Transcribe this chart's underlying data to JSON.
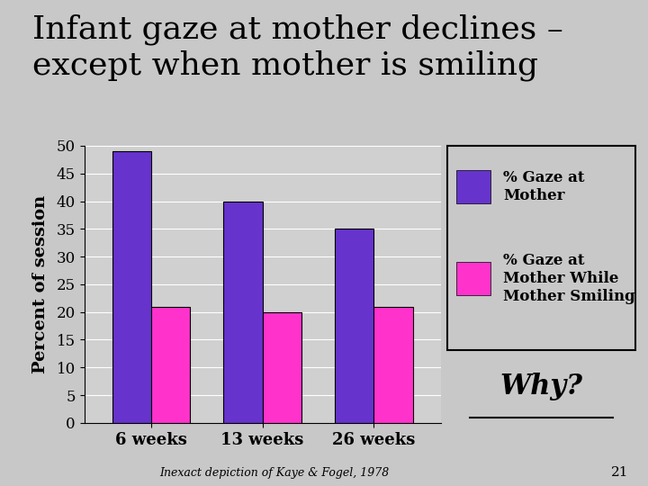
{
  "title": "Infant gaze at mother declines –\nexcept when mother is smiling",
  "categories": [
    "6 weeks",
    "13 weeks",
    "26 weeks"
  ],
  "series": [
    {
      "label": "% Gaze at\nMother",
      "values": [
        49,
        40,
        35
      ],
      "color": "#6633CC"
    },
    {
      "label": "% Gaze at\nMother While\nMother Smiling",
      "values": [
        21,
        20,
        21
      ],
      "color": "#FF33CC"
    }
  ],
  "ylabel": "Percent of session",
  "ylim": [
    0,
    50
  ],
  "yticks": [
    0,
    5,
    10,
    15,
    20,
    25,
    30,
    35,
    40,
    45,
    50
  ],
  "background_color": "#C8C8C8",
  "plot_bg_color": "#D0D0D0",
  "title_fontsize": 26,
  "axis_label_fontsize": 14,
  "tick_fontsize": 12,
  "legend_fontsize": 12,
  "annotation": "Why?",
  "footnote": "Inexact depiction of Kaye & Fogel, 1978",
  "slide_number": "21",
  "bar_width": 0.35
}
